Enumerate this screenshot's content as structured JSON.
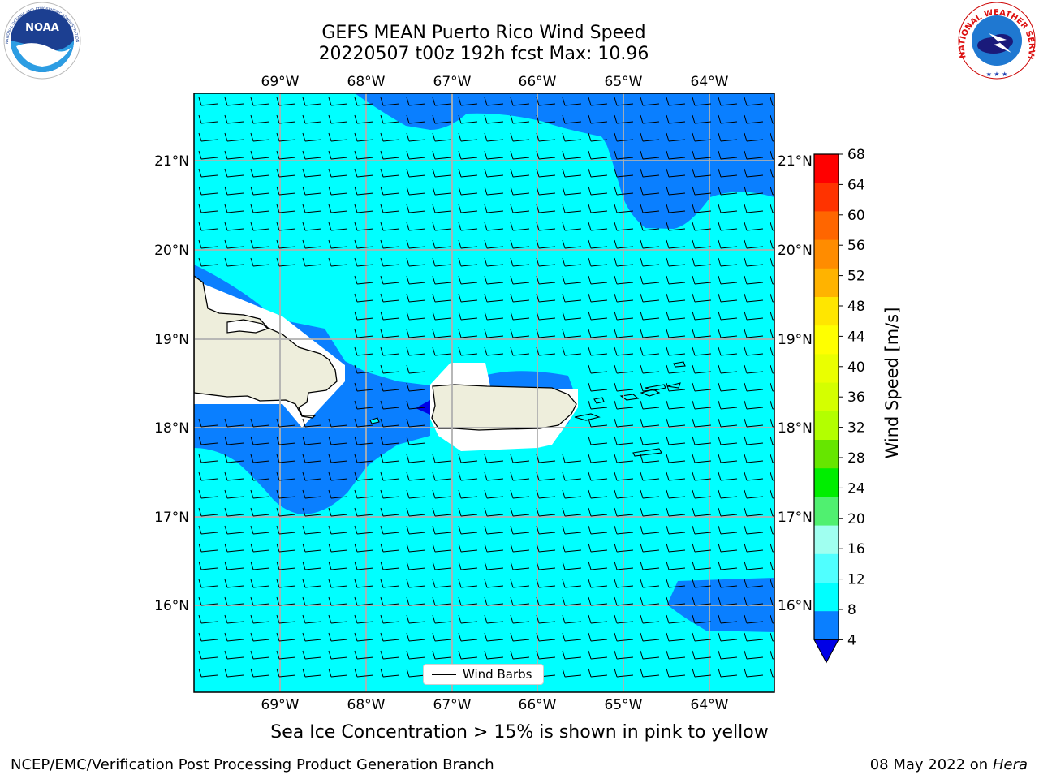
{
  "title": {
    "line1": "GEFS MEAN Puerto Rico Wind Speed",
    "line2": "20220507 t00z 192h fcst   Max: 10.96"
  },
  "map": {
    "lon_labels": [
      "69°W",
      "68°W",
      "67°W",
      "66°W",
      "65°W",
      "64°W"
    ],
    "lat_labels": [
      "21°N",
      "20°N",
      "19°N",
      "18°N",
      "17°N",
      "16°N"
    ],
    "legend_label": "Wind Barbs",
    "colors": {
      "ocean_8_12": "#00ffff",
      "band_4_8": "#0a7fff",
      "below_4": "#0000e6",
      "land": "#eeeedc",
      "gridline": "#b0b0b0"
    }
  },
  "colorbar": {
    "label": "Wind Speed [m/s]",
    "ticks": [
      "68",
      "64",
      "60",
      "56",
      "52",
      "48",
      "44",
      "40",
      "36",
      "32",
      "28",
      "24",
      "20",
      "16",
      "12",
      "8",
      "4"
    ],
    "bin_colors_top_down": [
      "#ff0000",
      "#ff3300",
      "#ff6600",
      "#ff8c00",
      "#ffb300",
      "#ffe600",
      "#ffff00",
      "#eaff00",
      "#d4ff00",
      "#b3ff00",
      "#66e600",
      "#00ee00",
      "#50f070",
      "#a0fff0",
      "#50ffff",
      "#00ffff",
      "#0a7fff"
    ],
    "under_color": "#0000e6"
  },
  "caption": "Sea Ice Concentration > 15% is shown in pink to yellow",
  "footer": {
    "left": "NCEP/EMC/Verification Post Processing Product Generation Branch",
    "date": "08 May 2022 on",
    "host": "Hera"
  },
  "logos": {
    "left": "noaa-logo",
    "right": "nws-logo",
    "right_ring_text": "NATIONAL WEATHER SERVICE",
    "left_ring_text": "NATIONAL OCEANIC AND ATMOSPHERIC ADMINISTRATION · U.S. DEPARTMENT OF COMMERCE"
  }
}
